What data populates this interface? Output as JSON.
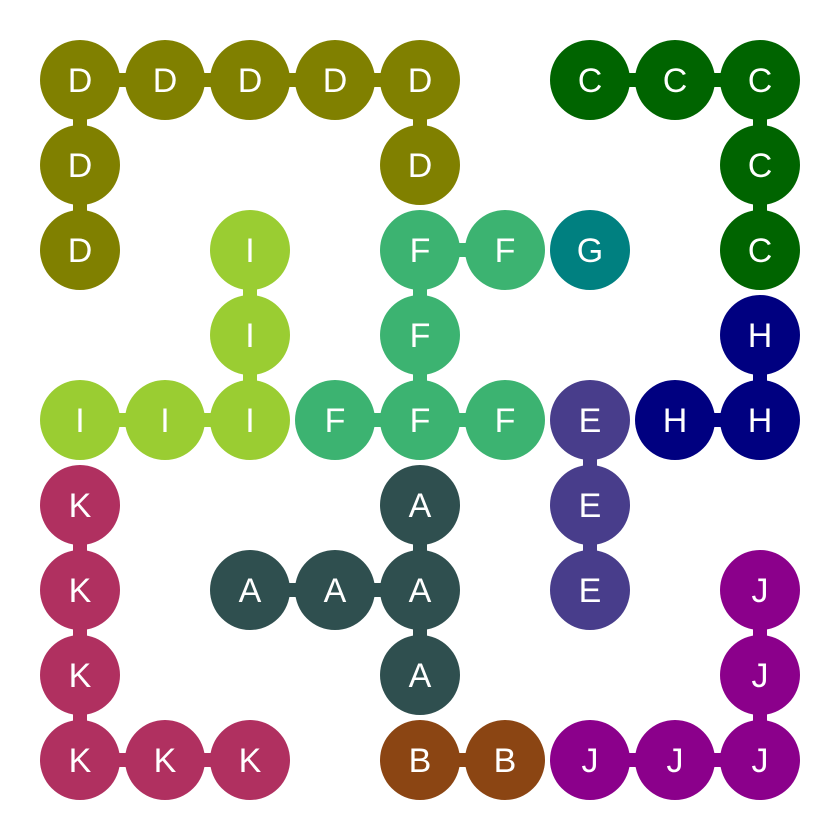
{
  "grid": {
    "rows": 9,
    "cols": 9
  },
  "pieces": [
    {
      "letter": "D",
      "color": "#808000",
      "cells": [
        [
          0,
          0
        ],
        [
          0,
          1
        ],
        [
          0,
          2
        ],
        [
          0,
          3
        ],
        [
          0,
          4
        ],
        [
          1,
          0
        ],
        [
          1,
          4
        ],
        [
          2,
          0
        ]
      ],
      "links": [
        [
          [
            0,
            0
          ],
          [
            0,
            1
          ]
        ],
        [
          [
            0,
            1
          ],
          [
            0,
            2
          ]
        ],
        [
          [
            0,
            2
          ],
          [
            0,
            3
          ]
        ],
        [
          [
            0,
            3
          ],
          [
            0,
            4
          ]
        ],
        [
          [
            0,
            0
          ],
          [
            1,
            0
          ]
        ],
        [
          [
            1,
            0
          ],
          [
            2,
            0
          ]
        ],
        [
          [
            0,
            4
          ],
          [
            1,
            4
          ]
        ]
      ]
    },
    {
      "letter": "C",
      "color": "#006400",
      "cells": [
        [
          0,
          6
        ],
        [
          0,
          7
        ],
        [
          0,
          8
        ],
        [
          1,
          8
        ],
        [
          2,
          8
        ]
      ],
      "links": [
        [
          [
            0,
            6
          ],
          [
            0,
            7
          ]
        ],
        [
          [
            0,
            7
          ],
          [
            0,
            8
          ]
        ],
        [
          [
            0,
            8
          ],
          [
            1,
            8
          ]
        ],
        [
          [
            1,
            8
          ],
          [
            2,
            8
          ]
        ]
      ]
    },
    {
      "letter": "I",
      "color": "#9acd32",
      "cells": [
        [
          2,
          2
        ],
        [
          3,
          2
        ],
        [
          4,
          0
        ],
        [
          4,
          1
        ],
        [
          4,
          2
        ]
      ],
      "links": [
        [
          [
            2,
            2
          ],
          [
            3,
            2
          ]
        ],
        [
          [
            3,
            2
          ],
          [
            4,
            2
          ]
        ],
        [
          [
            4,
            0
          ],
          [
            4,
            1
          ]
        ],
        [
          [
            4,
            1
          ],
          [
            4,
            2
          ]
        ]
      ]
    },
    {
      "letter": "F",
      "color": "#3cb371",
      "cells": [
        [
          2,
          4
        ],
        [
          2,
          5
        ],
        [
          3,
          4
        ],
        [
          4,
          3
        ],
        [
          4,
          4
        ],
        [
          4,
          5
        ]
      ],
      "links": [
        [
          [
            2,
            4
          ],
          [
            2,
            5
          ]
        ],
        [
          [
            2,
            4
          ],
          [
            3,
            4
          ]
        ],
        [
          [
            3,
            4
          ],
          [
            4,
            4
          ]
        ],
        [
          [
            4,
            3
          ],
          [
            4,
            4
          ]
        ],
        [
          [
            4,
            4
          ],
          [
            4,
            5
          ]
        ]
      ]
    },
    {
      "letter": "G",
      "color": "#008080",
      "cells": [
        [
          2,
          6
        ]
      ],
      "links": []
    },
    {
      "letter": "H",
      "color": "#000080",
      "cells": [
        [
          3,
          8
        ],
        [
          4,
          7
        ],
        [
          4,
          8
        ]
      ],
      "links": [
        [
          [
            3,
            8
          ],
          [
            4,
            8
          ]
        ],
        [
          [
            4,
            7
          ],
          [
            4,
            8
          ]
        ]
      ]
    },
    {
      "letter": "E",
      "color": "#483d8b",
      "cells": [
        [
          4,
          6
        ],
        [
          5,
          6
        ],
        [
          6,
          6
        ]
      ],
      "links": [
        [
          [
            4,
            6
          ],
          [
            5,
            6
          ]
        ],
        [
          [
            5,
            6
          ],
          [
            6,
            6
          ]
        ]
      ]
    },
    {
      "letter": "K",
      "color": "#b03060",
      "cells": [
        [
          5,
          0
        ],
        [
          6,
          0
        ],
        [
          7,
          0
        ],
        [
          8,
          0
        ],
        [
          8,
          1
        ],
        [
          8,
          2
        ]
      ],
      "links": [
        [
          [
            5,
            0
          ],
          [
            6,
            0
          ]
        ],
        [
          [
            6,
            0
          ],
          [
            7,
            0
          ]
        ],
        [
          [
            7,
            0
          ],
          [
            8,
            0
          ]
        ],
        [
          [
            8,
            0
          ],
          [
            8,
            1
          ]
        ],
        [
          [
            8,
            1
          ],
          [
            8,
            2
          ]
        ]
      ]
    },
    {
      "letter": "A",
      "color": "#2f4f4f",
      "cells": [
        [
          5,
          4
        ],
        [
          6,
          2
        ],
        [
          6,
          3
        ],
        [
          6,
          4
        ],
        [
          7,
          4
        ]
      ],
      "links": [
        [
          [
            5,
            4
          ],
          [
            6,
            4
          ]
        ],
        [
          [
            6,
            4
          ],
          [
            7,
            4
          ]
        ],
        [
          [
            6,
            2
          ],
          [
            6,
            3
          ]
        ],
        [
          [
            6,
            3
          ],
          [
            6,
            4
          ]
        ]
      ]
    },
    {
      "letter": "J",
      "color": "#8b008b",
      "cells": [
        [
          6,
          8
        ],
        [
          7,
          8
        ],
        [
          8,
          6
        ],
        [
          8,
          7
        ],
        [
          8,
          8
        ]
      ],
      "links": [
        [
          [
            6,
            8
          ],
          [
            7,
            8
          ]
        ],
        [
          [
            7,
            8
          ],
          [
            8,
            8
          ]
        ],
        [
          [
            8,
            6
          ],
          [
            8,
            7
          ]
        ],
        [
          [
            8,
            7
          ],
          [
            8,
            8
          ]
        ]
      ]
    },
    {
      "letter": "B",
      "color": "#8b4513",
      "cells": [
        [
          8,
          4
        ],
        [
          8,
          5
        ]
      ],
      "links": [
        [
          [
            8,
            4
          ],
          [
            8,
            5
          ]
        ]
      ]
    }
  ]
}
